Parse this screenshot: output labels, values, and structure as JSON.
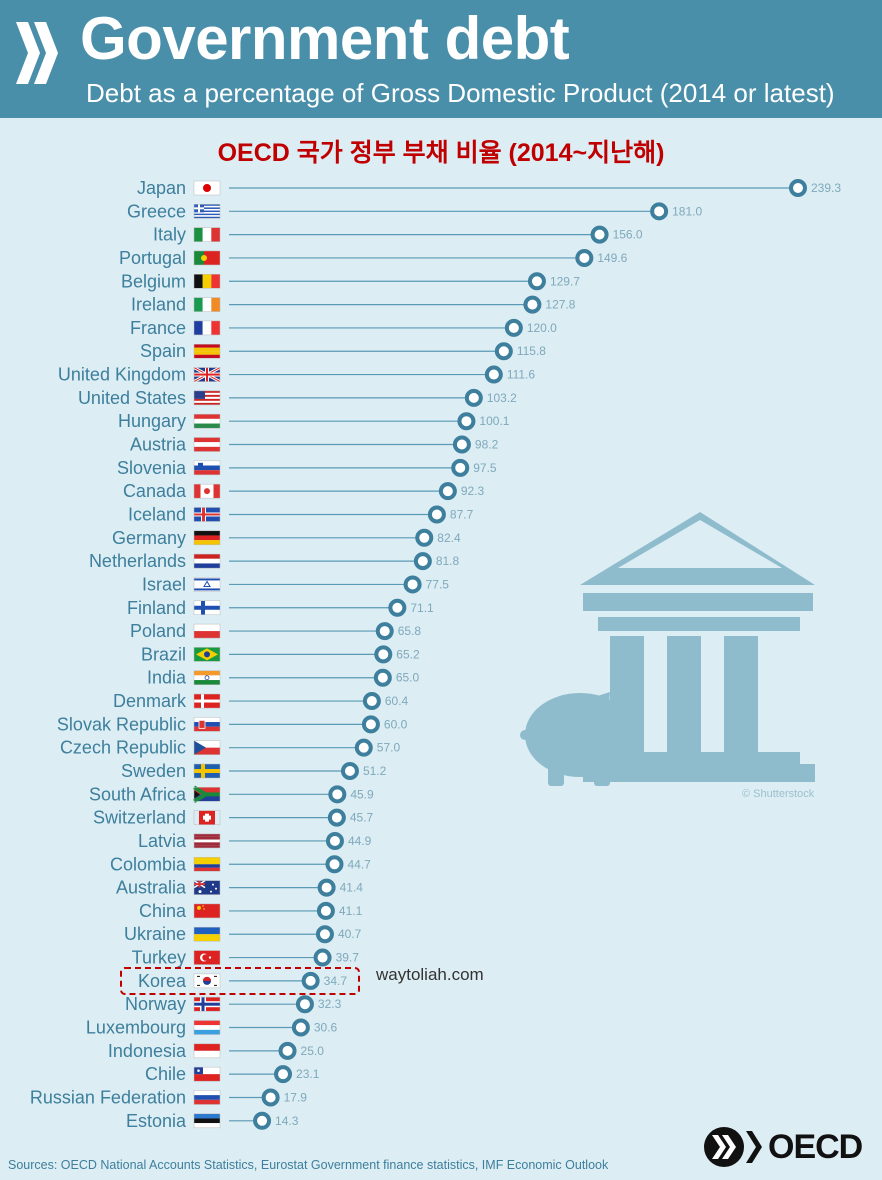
{
  "header": {
    "title": "Government debt",
    "subtitle": "Debt as a percentage of Gross Domestic Product (2014 or latest)"
  },
  "korean_title": "OECD 국가 정부 부채 비율 (2014~지난해)",
  "watermark": "waytoliah.com",
  "image_credit": "© Shutterstock",
  "sources": "Sources: OECD National Accounts Statistics, Eurostat Government finance statistics, IMF Economic Outlook",
  "logo_text": "OECD",
  "colors": {
    "header_bg": "#4a8faa",
    "background": "#dcedf4",
    "accent": "#3d7f9c",
    "line": "#5a9ab5",
    "highlight_box": "#c00000"
  },
  "chart_data": {
    "type": "lollipop",
    "orientation": "horizontal",
    "title": "Government debt",
    "subtitle": "Debt as a percentage of Gross Domestic Product (2014 or latest)",
    "highlight": "Korea",
    "categories": [
      "Japan",
      "Greece",
      "Italy",
      "Portugal",
      "Belgium",
      "Ireland",
      "France",
      "Spain",
      "United Kingdom",
      "United States",
      "Hungary",
      "Austria",
      "Slovenia",
      "Canada",
      "Iceland",
      "Germany",
      "Netherlands",
      "Israel",
      "Finland",
      "Poland",
      "Brazil",
      "India",
      "Denmark",
      "Slovak Republic",
      "Czech Republic",
      "Sweden",
      "South Africa",
      "Switzerland",
      "Latvia",
      "Colombia",
      "Australia",
      "China",
      "Ukraine",
      "Turkey",
      "Korea",
      "Norway",
      "Luxembourg",
      "Indonesia",
      "Chile",
      "Russian Federation",
      "Estonia"
    ],
    "values": [
      239.3,
      181.0,
      156.0,
      149.6,
      129.7,
      127.8,
      120.0,
      115.8,
      111.6,
      103.2,
      100.1,
      98.2,
      97.5,
      92.3,
      87.7,
      82.4,
      81.8,
      77.5,
      71.1,
      65.8,
      65.2,
      65.0,
      60.4,
      60.0,
      57.0,
      51.2,
      45.9,
      45.7,
      44.9,
      44.7,
      41.4,
      41.1,
      40.7,
      39.7,
      34.7,
      32.3,
      30.6,
      25.0,
      23.1,
      17.9,
      14.3
    ],
    "value_labels": [
      "239.3",
      "181.0",
      "156.0",
      "149.6",
      "129.7",
      "127.8",
      "120.0",
      "115.8",
      "111.6",
      "103.2",
      "100.1",
      "98.2",
      "97.5",
      "92.3",
      "87.7",
      "82.4",
      "81.8",
      "77.5",
      "71.1",
      "65.8",
      "65.2",
      "65.0",
      "60.4",
      "60.0",
      "57.0",
      "51.2",
      "45.9",
      "45.7",
      "44.9",
      "44.7",
      "41.4",
      "41.1",
      "40.7",
      "39.7",
      "34.7",
      "32.3",
      "30.6",
      "25.0",
      "23.1",
      "17.9",
      "14.3"
    ],
    "flag_icons": [
      "japan-flag",
      "greece-flag",
      "italy-flag",
      "portugal-flag",
      "belgium-flag",
      "ireland-flag",
      "france-flag",
      "spain-flag",
      "united-kingdom-flag",
      "united-states-flag",
      "hungary-flag",
      "austria-flag",
      "slovenia-flag",
      "canada-flag",
      "iceland-flag",
      "germany-flag",
      "netherlands-flag",
      "israel-flag",
      "finland-flag",
      "poland-flag",
      "brazil-flag",
      "india-flag",
      "denmark-flag",
      "slovak-republic-flag",
      "czech-republic-flag",
      "sweden-flag",
      "south-africa-flag",
      "switzerland-flag",
      "latvia-flag",
      "colombia-flag",
      "australia-flag",
      "china-flag",
      "ukraine-flag",
      "turkey-flag",
      "korea-flag",
      "norway-flag",
      "luxembourg-flag",
      "indonesia-flag",
      "chile-flag",
      "russian-federation-flag",
      "estonia-flag"
    ],
    "xlim": [
      0,
      239.3
    ],
    "grid": false
  }
}
